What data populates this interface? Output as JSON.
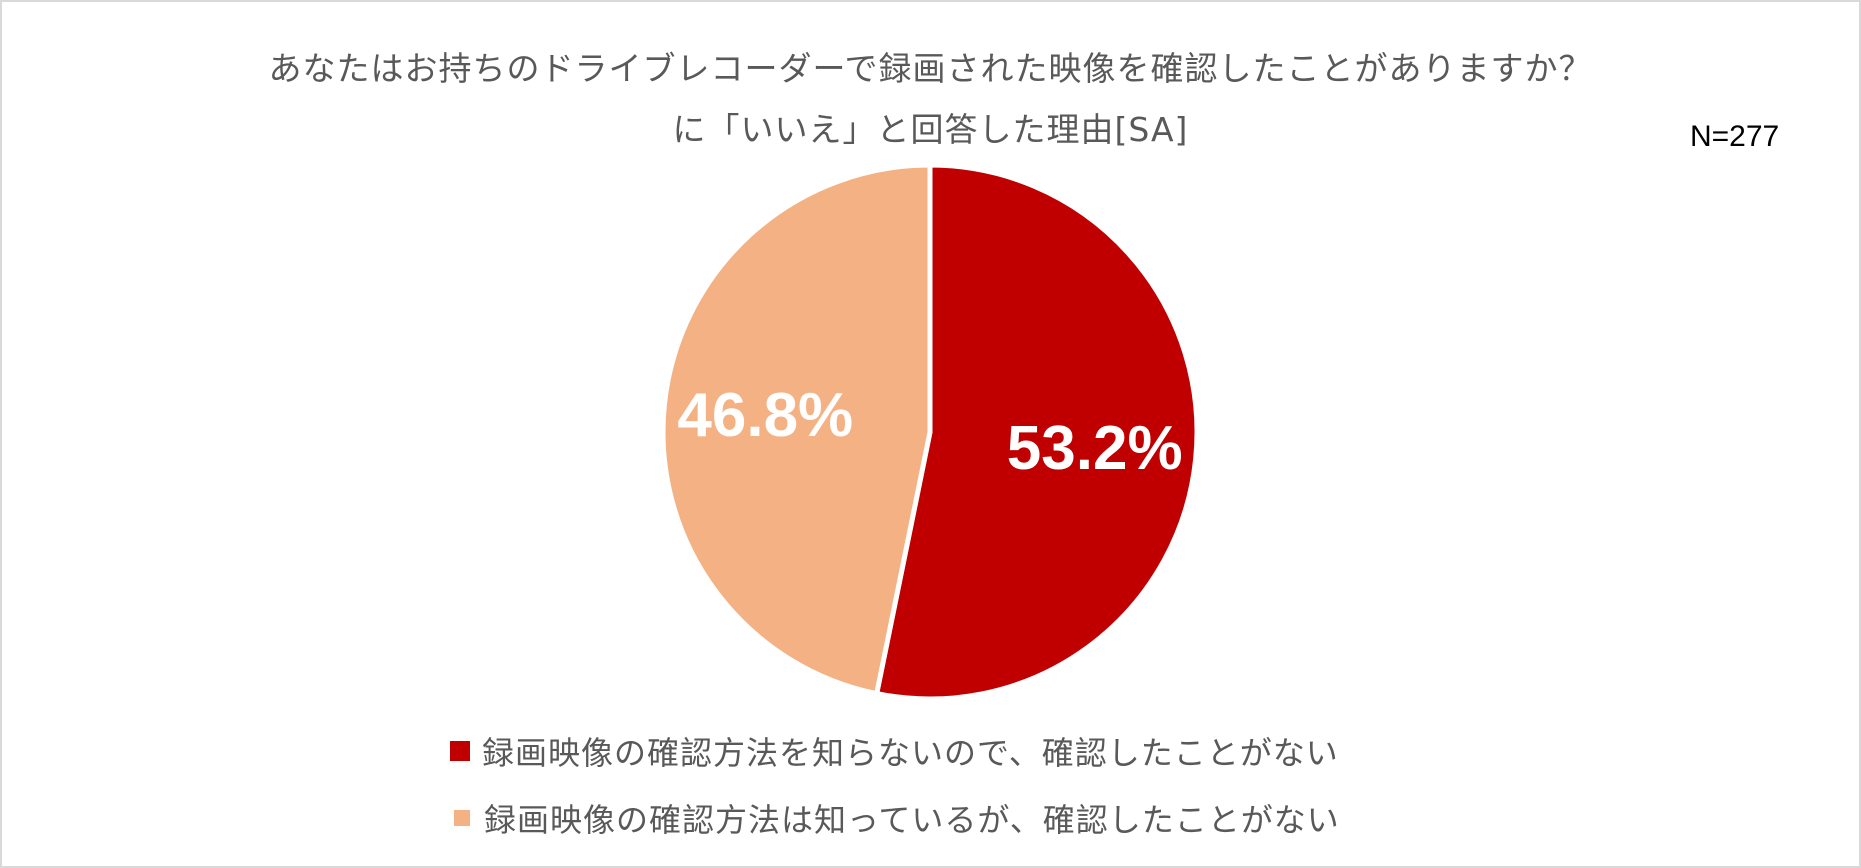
{
  "chart_data": {
    "type": "pie",
    "title_line1": "あなたはお持ちのドライブレコーダーで録画された映像を確認したことがありますか？",
    "title_line2": "に「いいえ」と回答した理由[SA]",
    "sample_size": "N=277",
    "slices": [
      {
        "label": "録画映像の確認方法を知らないので、確認したことがない",
        "value": 53.2,
        "display": "53.2%",
        "color": "#C00000"
      },
      {
        "label": "録画映像の確認方法は知っているが、確認したことがない",
        "value": 46.8,
        "display": "46.8%",
        "color": "#F4B183"
      }
    ],
    "start_angle_deg": 0,
    "direction": "clockwise",
    "legend_position": "bottom",
    "label_color": "#FFFFFF"
  }
}
